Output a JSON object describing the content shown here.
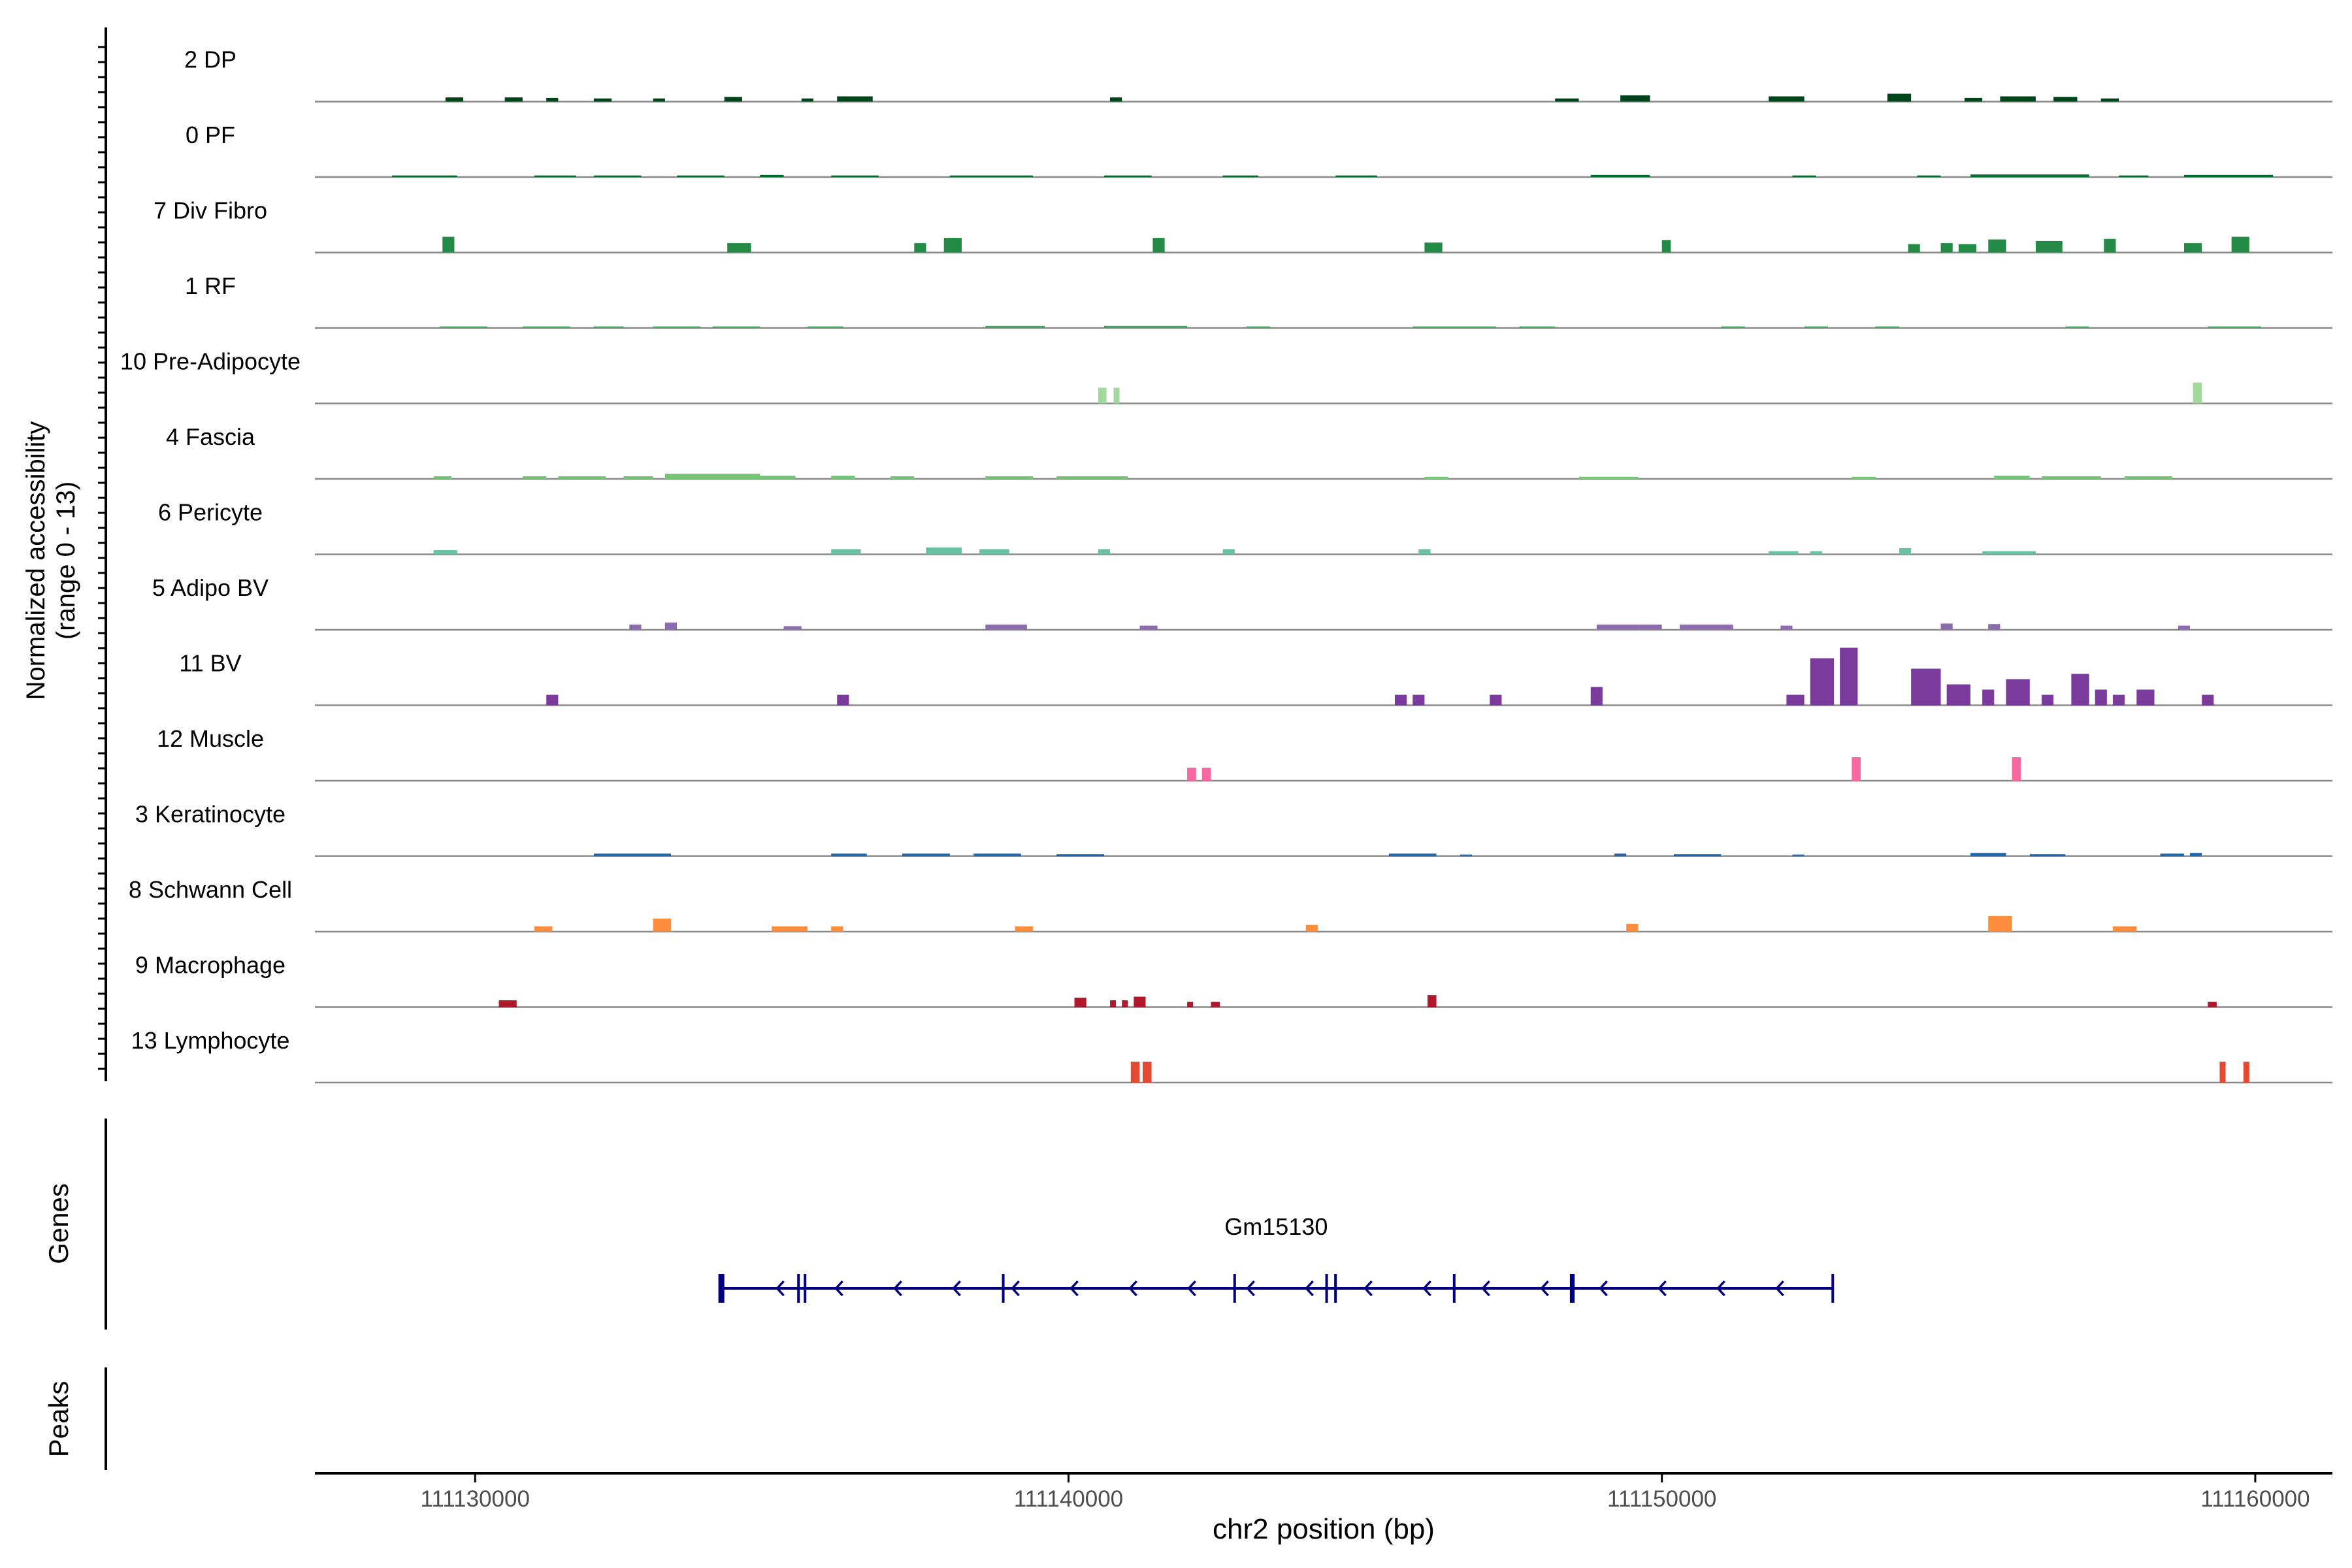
{
  "chart_data": {
    "type": "coverage",
    "y_axis_label_line1": "Normalized accessibility",
    "y_axis_label_line2": "(range 0 - 13)",
    "ylim": [
      0,
      13
    ],
    "xlim": [
      111127300,
      111161300
    ],
    "x_ticks": [
      111130000,
      111140000,
      111150000,
      111160000
    ],
    "x_tick_labels": [
      "111130000",
      "111140000",
      "111150000",
      "111160000"
    ],
    "xlabel": "chr2 position (bp)",
    "genes_label": "Genes",
    "peaks_label": "Peaks",
    "tracks": [
      {
        "name": "2 DP",
        "color": "#00441b",
        "peaks": [
          [
            111129500,
            111129800,
            0.8
          ],
          [
            111130500,
            111130800,
            0.8
          ],
          [
            111131200,
            111131400,
            0.7
          ],
          [
            111132000,
            111132300,
            0.6
          ],
          [
            111133000,
            111133200,
            0.6
          ],
          [
            111134200,
            111134500,
            0.9
          ],
          [
            111135500,
            111135700,
            0.6
          ],
          [
            111136100,
            111136700,
            1.0
          ],
          [
            111140700,
            111140900,
            0.8
          ],
          [
            111148200,
            111148600,
            0.6
          ],
          [
            111149300,
            111149800,
            1.2
          ],
          [
            111151800,
            111152400,
            1.0
          ],
          [
            111153800,
            111154200,
            1.5
          ],
          [
            111155100,
            111155400,
            0.7
          ],
          [
            111155700,
            111156300,
            1.0
          ],
          [
            111156600,
            111157000,
            0.9
          ],
          [
            111157400,
            111157700,
            0.6
          ]
        ]
      },
      {
        "name": "0 PF",
        "color": "#006d2c",
        "peaks": [
          [
            111128600,
            111129700,
            0.3
          ],
          [
            111131000,
            111131700,
            0.3
          ],
          [
            111132000,
            111132800,
            0.3
          ],
          [
            111133400,
            111134200,
            0.3
          ],
          [
            111134800,
            111135200,
            0.4
          ],
          [
            111136000,
            111136800,
            0.3
          ],
          [
            111138000,
            111139400,
            0.3
          ],
          [
            111140600,
            111141400,
            0.3
          ],
          [
            111142600,
            111143200,
            0.3
          ],
          [
            111144500,
            111145200,
            0.3
          ],
          [
            111148800,
            111149800,
            0.4
          ],
          [
            111152200,
            111152600,
            0.3
          ],
          [
            111154300,
            111154700,
            0.3
          ],
          [
            111155200,
            111157200,
            0.5
          ],
          [
            111157700,
            111158200,
            0.3
          ],
          [
            111158800,
            111160300,
            0.4
          ]
        ]
      },
      {
        "name": "7 Div Fibro",
        "color": "#238b45",
        "peaks": [
          [
            111129450,
            111129650,
            3.0
          ],
          [
            111134250,
            111134650,
            1.8
          ],
          [
            111137400,
            111137600,
            1.8
          ],
          [
            111137900,
            111138200,
            2.8
          ],
          [
            111141420,
            111141620,
            2.8
          ],
          [
            111146000,
            111146300,
            1.9
          ],
          [
            111150000,
            111150150,
            2.4
          ],
          [
            111154150,
            111154350,
            1.6
          ],
          [
            111154700,
            111154900,
            1.8
          ],
          [
            111155000,
            111155300,
            1.6
          ],
          [
            111155500,
            111155800,
            2.5
          ],
          [
            111156300,
            111156750,
            2.2
          ],
          [
            111157450,
            111157650,
            2.6
          ],
          [
            111158800,
            111159100,
            1.8
          ],
          [
            111159600,
            111159900,
            3.0
          ]
        ]
      },
      {
        "name": "1 RF",
        "color": "#41ab5d",
        "peaks": [
          [
            111129400,
            111130200,
            0.3
          ],
          [
            111130800,
            111131600,
            0.3
          ],
          [
            111132000,
            111132500,
            0.3
          ],
          [
            111133000,
            111133800,
            0.3
          ],
          [
            111134000,
            111134800,
            0.3
          ],
          [
            111135600,
            111136200,
            0.3
          ],
          [
            111138600,
            111139600,
            0.4
          ],
          [
            111140600,
            111142000,
            0.4
          ],
          [
            111143000,
            111143400,
            0.3
          ],
          [
            111145800,
            111147200,
            0.3
          ],
          [
            111147600,
            111148200,
            0.3
          ],
          [
            111151000,
            111151400,
            0.3
          ],
          [
            111152400,
            111152800,
            0.3
          ],
          [
            111153600,
            111154000,
            0.3
          ],
          [
            111156800,
            111157200,
            0.3
          ],
          [
            111159200,
            111160100,
            0.3
          ]
        ]
      },
      {
        "name": "10 Pre-Adipocyte",
        "color": "#a1d99b",
        "peaks": [
          [
            111140500,
            111140640,
            3.0
          ],
          [
            111140760,
            111140860,
            3.0
          ],
          [
            111158950,
            111159100,
            4.0
          ]
        ]
      },
      {
        "name": "4 Fascia",
        "color": "#74c476",
        "peaks": [
          [
            111129300,
            111129600,
            0.5
          ],
          [
            111130800,
            111131200,
            0.5
          ],
          [
            111131400,
            111132200,
            0.5
          ],
          [
            111132500,
            111133000,
            0.5
          ],
          [
            111133200,
            111134800,
            1.0
          ],
          [
            111134800,
            111135400,
            0.6
          ],
          [
            111136000,
            111136400,
            0.6
          ],
          [
            111137000,
            111137400,
            0.5
          ],
          [
            111138600,
            111139400,
            0.5
          ],
          [
            111139800,
            111141000,
            0.5
          ],
          [
            111146000,
            111146400,
            0.4
          ],
          [
            111148600,
            111149600,
            0.4
          ],
          [
            111153200,
            111153600,
            0.4
          ],
          [
            111155600,
            111156200,
            0.6
          ],
          [
            111156400,
            111157400,
            0.5
          ],
          [
            111157800,
            111158600,
            0.5
          ]
        ]
      },
      {
        "name": "6 Pericyte",
        "color": "#66c2a4",
        "peaks": [
          [
            111129300,
            111129700,
            0.8
          ],
          [
            111136000,
            111136500,
            1.0
          ],
          [
            111137600,
            111138200,
            1.3
          ],
          [
            111138500,
            111139000,
            1.0
          ],
          [
            111140500,
            111140700,
            1.0
          ],
          [
            111142600,
            111142800,
            1.0
          ],
          [
            111145900,
            111146100,
            1.0
          ],
          [
            111151800,
            111152300,
            0.6
          ],
          [
            111152500,
            111152700,
            0.6
          ],
          [
            111154000,
            111154200,
            1.2
          ],
          [
            111155400,
            111156300,
            0.6
          ]
        ]
      },
      {
        "name": "5 Adipo BV",
        "color": "#8c6bb1",
        "peaks": [
          [
            111132600,
            111132800,
            1.0
          ],
          [
            111133200,
            111133400,
            1.4
          ],
          [
            111135200,
            111135500,
            0.7
          ],
          [
            111138600,
            111139300,
            1.0
          ],
          [
            111141200,
            111141500,
            0.8
          ],
          [
            111148900,
            111149600,
            1.0
          ],
          [
            111149600,
            111150000,
            1.0
          ],
          [
            111150300,
            111151200,
            1.0
          ],
          [
            111152000,
            111152200,
            0.8
          ],
          [
            111154700,
            111154900,
            1.2
          ],
          [
            111155500,
            111155700,
            1.1
          ],
          [
            111158700,
            111158900,
            0.8
          ]
        ]
      },
      {
        "name": "11 BV",
        "color": "#7a3b9d",
        "peaks": [
          [
            111131200,
            111131400,
            2.0
          ],
          [
            111136100,
            111136300,
            2.0
          ],
          [
            111145500,
            111145700,
            2.0
          ],
          [
            111145800,
            111146000,
            2.0
          ],
          [
            111147100,
            111147300,
            2.0
          ],
          [
            111148800,
            111149000,
            3.5
          ],
          [
            111152100,
            111152400,
            2.0
          ],
          [
            111152500,
            111152900,
            9.0
          ],
          [
            111153000,
            111153300,
            11.0
          ],
          [
            111154200,
            111154700,
            7.0
          ],
          [
            111154800,
            111155200,
            4.0
          ],
          [
            111155400,
            111155600,
            3.0
          ],
          [
            111155800,
            111156200,
            5.0
          ],
          [
            111156400,
            111156600,
            2.0
          ],
          [
            111156900,
            111157200,
            6.0
          ],
          [
            111157300,
            111157500,
            3.0
          ],
          [
            111157600,
            111157800,
            2.0
          ],
          [
            111158000,
            111158300,
            3.0
          ],
          [
            111159100,
            111159300,
            2.0
          ]
        ]
      },
      {
        "name": "12 Muscle",
        "color": "#f768a1",
        "peaks": [
          [
            111142000,
            111142150,
            2.5
          ],
          [
            111142250,
            111142400,
            2.5
          ],
          [
            111153200,
            111153350,
            4.5
          ],
          [
            111155900,
            111156050,
            4.5
          ]
        ]
      },
      {
        "name": "3 Keratinocyte",
        "color": "#2166ac",
        "peaks": [
          [
            111132000,
            111133300,
            0.5
          ],
          [
            111136000,
            111136600,
            0.5
          ],
          [
            111137200,
            111138000,
            0.5
          ],
          [
            111138400,
            111139200,
            0.5
          ],
          [
            111139800,
            111140600,
            0.4
          ],
          [
            111145400,
            111146200,
            0.5
          ],
          [
            111146600,
            111146800,
            0.3
          ],
          [
            111149200,
            111149400,
            0.5
          ],
          [
            111150200,
            111151000,
            0.4
          ],
          [
            111152200,
            111152400,
            0.3
          ],
          [
            111155200,
            111155800,
            0.6
          ],
          [
            111156200,
            111156800,
            0.4
          ],
          [
            111158400,
            111158800,
            0.5
          ],
          [
            111158900,
            111159100,
            0.6
          ]
        ]
      },
      {
        "name": "8 Schwann Cell",
        "color": "#fd8d3c",
        "peaks": [
          [
            111131000,
            111131300,
            1.0
          ],
          [
            111133000,
            111133300,
            2.5
          ],
          [
            111135000,
            111135600,
            1.0
          ],
          [
            111136000,
            111136200,
            1.0
          ],
          [
            111139100,
            111139400,
            1.0
          ],
          [
            111144000,
            111144200,
            1.3
          ],
          [
            111149400,
            111149600,
            1.5
          ],
          [
            111155500,
            111155900,
            3.0
          ],
          [
            111157600,
            111158000,
            1.0
          ]
        ]
      },
      {
        "name": "9 Macrophage",
        "color": "#b2182b",
        "peaks": [
          [
            111130400,
            111130700,
            1.3
          ],
          [
            111140100,
            111140300,
            1.8
          ],
          [
            111140700,
            111140800,
            1.3
          ],
          [
            111140900,
            111141000,
            1.3
          ],
          [
            111141100,
            111141300,
            2.0
          ],
          [
            111142000,
            111142100,
            1.0
          ],
          [
            111142400,
            111142550,
            1.0
          ],
          [
            111146050,
            111146200,
            2.3
          ],
          [
            111159200,
            111159350,
            1.0
          ]
        ]
      },
      {
        "name": "13 Lymphocyte",
        "color": "#e34a33",
        "peaks": [
          [
            111141050,
            111141200,
            4.0
          ],
          [
            111141250,
            111141400,
            4.0
          ],
          [
            111159400,
            111159500,
            4.0
          ],
          [
            111159800,
            111159900,
            4.0
          ]
        ]
      }
    ],
    "gene": {
      "name": "Gm15130",
      "color": "#000080",
      "start": 111134100,
      "end": 111152900,
      "strand": "-",
      "exons": [
        [
          111134100,
          111134200
        ],
        [
          111135450,
          111135470
        ],
        [
          111135560,
          111135580
        ],
        [
          111138900,
          111138920
        ],
        [
          111142800,
          111142830
        ],
        [
          111144350,
          111144370
        ],
        [
          111144500,
          111144530
        ],
        [
          111146500,
          111146520
        ],
        [
          111148450,
          111148530
        ],
        [
          111152880,
          111152900
        ]
      ]
    }
  }
}
